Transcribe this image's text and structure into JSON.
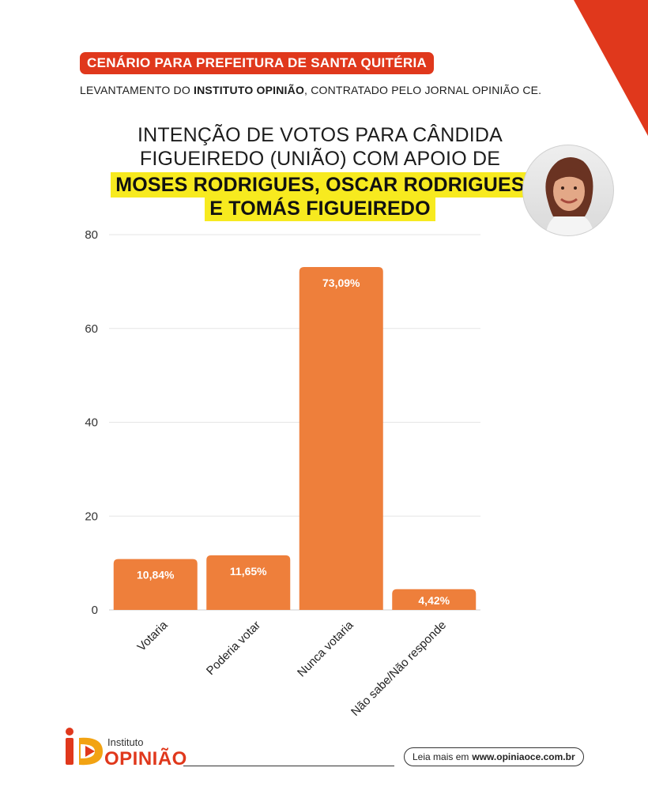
{
  "header": {
    "badge": "CENÁRIO PARA PREFEITURA DE SANTA QUITÉRIA",
    "subtitle_pre": "LEVANTAMENTO DO ",
    "subtitle_bold": "INSTITUTO OPINIÃO",
    "subtitle_post": ", CONTRATADO PELO JORNAL OPINIÃO CE."
  },
  "headline": {
    "line1": "INTENÇÃO DE VOTOS PARA CÂNDIDA",
    "line2": "FIGUEIREDO (UNIÃO) COM APOIO DE",
    "highlight1": "MOSES RODRIGUES, OSCAR RODRIGUES",
    "highlight2": "E TOMÁS FIGUEIREDO"
  },
  "chart_data": {
    "type": "bar",
    "categories": [
      "Votaria",
      "Poderia votar",
      "Nunca votaria",
      "Não sabe/Não responde"
    ],
    "values": [
      10.84,
      11.65,
      73.09,
      4.42
    ],
    "data_labels": [
      "10,84%",
      "11,65%",
      "73,09%",
      "4,42%"
    ],
    "yticks": [
      "0",
      "20",
      "40",
      "60",
      "80"
    ],
    "ylim": [
      0,
      80
    ],
    "grid": true,
    "bar_color": "#ee7f3b"
  },
  "footer": {
    "logo_small": "Instituto",
    "logo_big": "OPINIÃO",
    "read_more_label": "Leia mais em",
    "read_more_url": "www.opiniaoce.com.br"
  },
  "colors": {
    "accent_red": "#e0381c",
    "highlight_yellow": "#f7ea1f",
    "bar_orange": "#ee7f3b"
  }
}
